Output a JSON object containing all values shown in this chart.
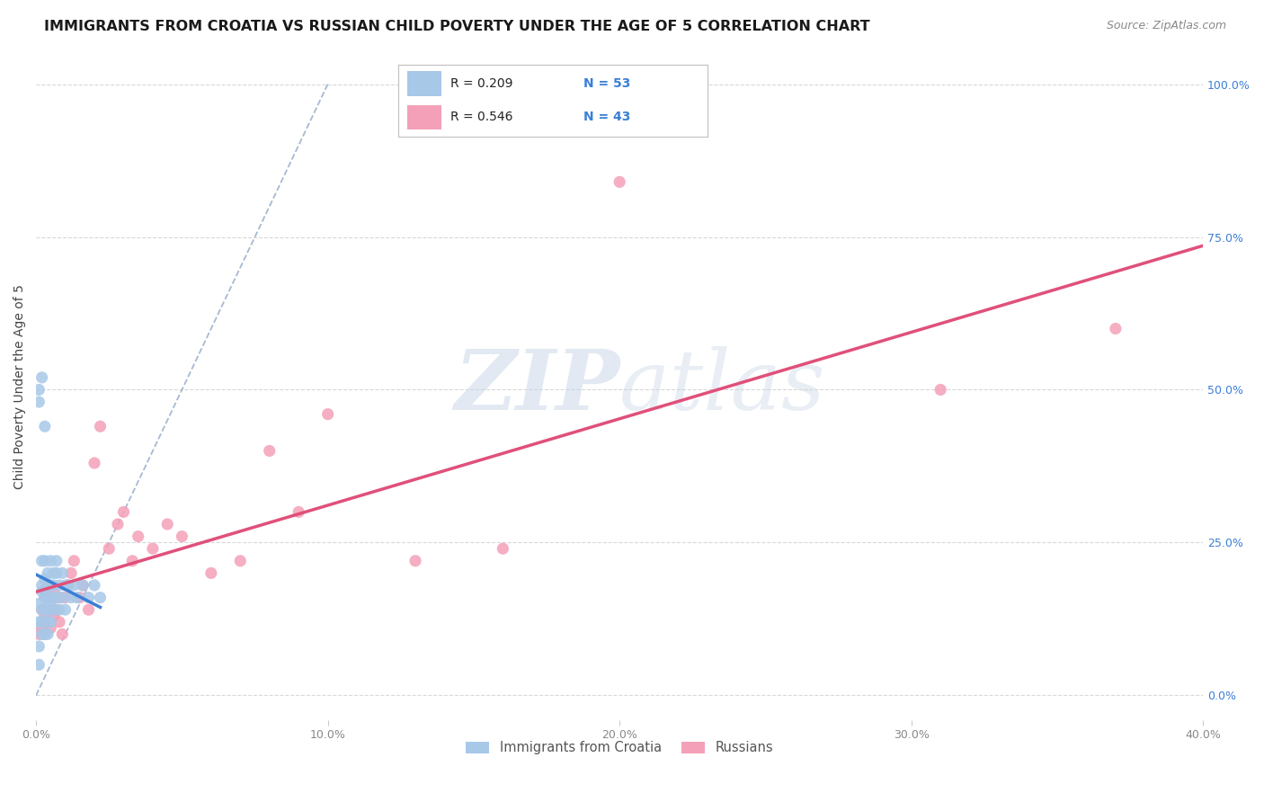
{
  "title": "IMMIGRANTS FROM CROATIA VS RUSSIAN CHILD POVERTY UNDER THE AGE OF 5 CORRELATION CHART",
  "source": "Source: ZipAtlas.com",
  "ylabel": "Child Poverty Under the Age of 5",
  "legend_label1": "Immigrants from Croatia",
  "legend_label2": "Russians",
  "legend_r1": "R = 0.209",
  "legend_n1": "N = 53",
  "legend_r2": "R = 0.546",
  "legend_n2": "N = 43",
  "color_blue": "#a8c8e8",
  "color_pink": "#f4a0b8",
  "color_blue_line": "#3a7fd5",
  "color_pink_line": "#e0507a",
  "color_dashed": "#90a8c8",
  "color_blue_text": "#3a7fd5",
  "color_pink_text": "#e0507a",
  "background_color": "#ffffff",
  "blue_x": [
    0.001,
    0.001,
    0.001,
    0.001,
    0.002,
    0.002,
    0.002,
    0.002,
    0.002,
    0.002,
    0.003,
    0.003,
    0.003,
    0.003,
    0.003,
    0.003,
    0.003,
    0.004,
    0.004,
    0.004,
    0.004,
    0.004,
    0.004,
    0.005,
    0.005,
    0.005,
    0.005,
    0.005,
    0.006,
    0.006,
    0.006,
    0.006,
    0.007,
    0.007,
    0.007,
    0.008,
    0.008,
    0.009,
    0.009,
    0.01,
    0.01,
    0.011,
    0.012,
    0.013,
    0.014,
    0.016,
    0.018,
    0.02,
    0.022,
    0.001,
    0.001,
    0.002,
    0.003
  ],
  "blue_y": [
    0.08,
    0.12,
    0.15,
    0.05,
    0.17,
    0.14,
    0.1,
    0.18,
    0.22,
    0.12,
    0.16,
    0.19,
    0.14,
    0.12,
    0.1,
    0.17,
    0.22,
    0.14,
    0.18,
    0.12,
    0.16,
    0.2,
    0.1,
    0.15,
    0.18,
    0.14,
    0.12,
    0.22,
    0.16,
    0.2,
    0.14,
    0.18,
    0.22,
    0.16,
    0.2,
    0.18,
    0.14,
    0.2,
    0.16,
    0.18,
    0.14,
    0.18,
    0.16,
    0.18,
    0.16,
    0.18,
    0.16,
    0.18,
    0.16,
    0.5,
    0.48,
    0.52,
    0.44
  ],
  "pink_x": [
    0.001,
    0.002,
    0.002,
    0.003,
    0.003,
    0.003,
    0.004,
    0.004,
    0.005,
    0.005,
    0.006,
    0.006,
    0.007,
    0.008,
    0.008,
    0.009,
    0.01,
    0.011,
    0.012,
    0.013,
    0.015,
    0.016,
    0.018,
    0.02,
    0.022,
    0.025,
    0.028,
    0.03,
    0.033,
    0.035,
    0.04,
    0.045,
    0.05,
    0.06,
    0.07,
    0.08,
    0.09,
    0.1,
    0.13,
    0.16,
    0.2,
    0.31,
    0.37
  ],
  "pink_y": [
    0.1,
    0.14,
    0.11,
    0.16,
    0.13,
    0.1,
    0.12,
    0.16,
    0.14,
    0.11,
    0.17,
    0.13,
    0.14,
    0.16,
    0.12,
    0.1,
    0.16,
    0.18,
    0.2,
    0.22,
    0.16,
    0.18,
    0.14,
    0.38,
    0.44,
    0.24,
    0.28,
    0.3,
    0.22,
    0.26,
    0.24,
    0.28,
    0.26,
    0.2,
    0.22,
    0.4,
    0.3,
    0.46,
    0.22,
    0.24,
    0.84,
    0.5,
    0.6
  ],
  "xlim": [
    0.0,
    0.4
  ],
  "ylim": [
    0.0,
    1.05
  ],
  "xticks": [
    0.0,
    0.1,
    0.2,
    0.3,
    0.4
  ],
  "yticks": [
    0.0,
    0.25,
    0.5,
    0.75,
    1.0
  ]
}
